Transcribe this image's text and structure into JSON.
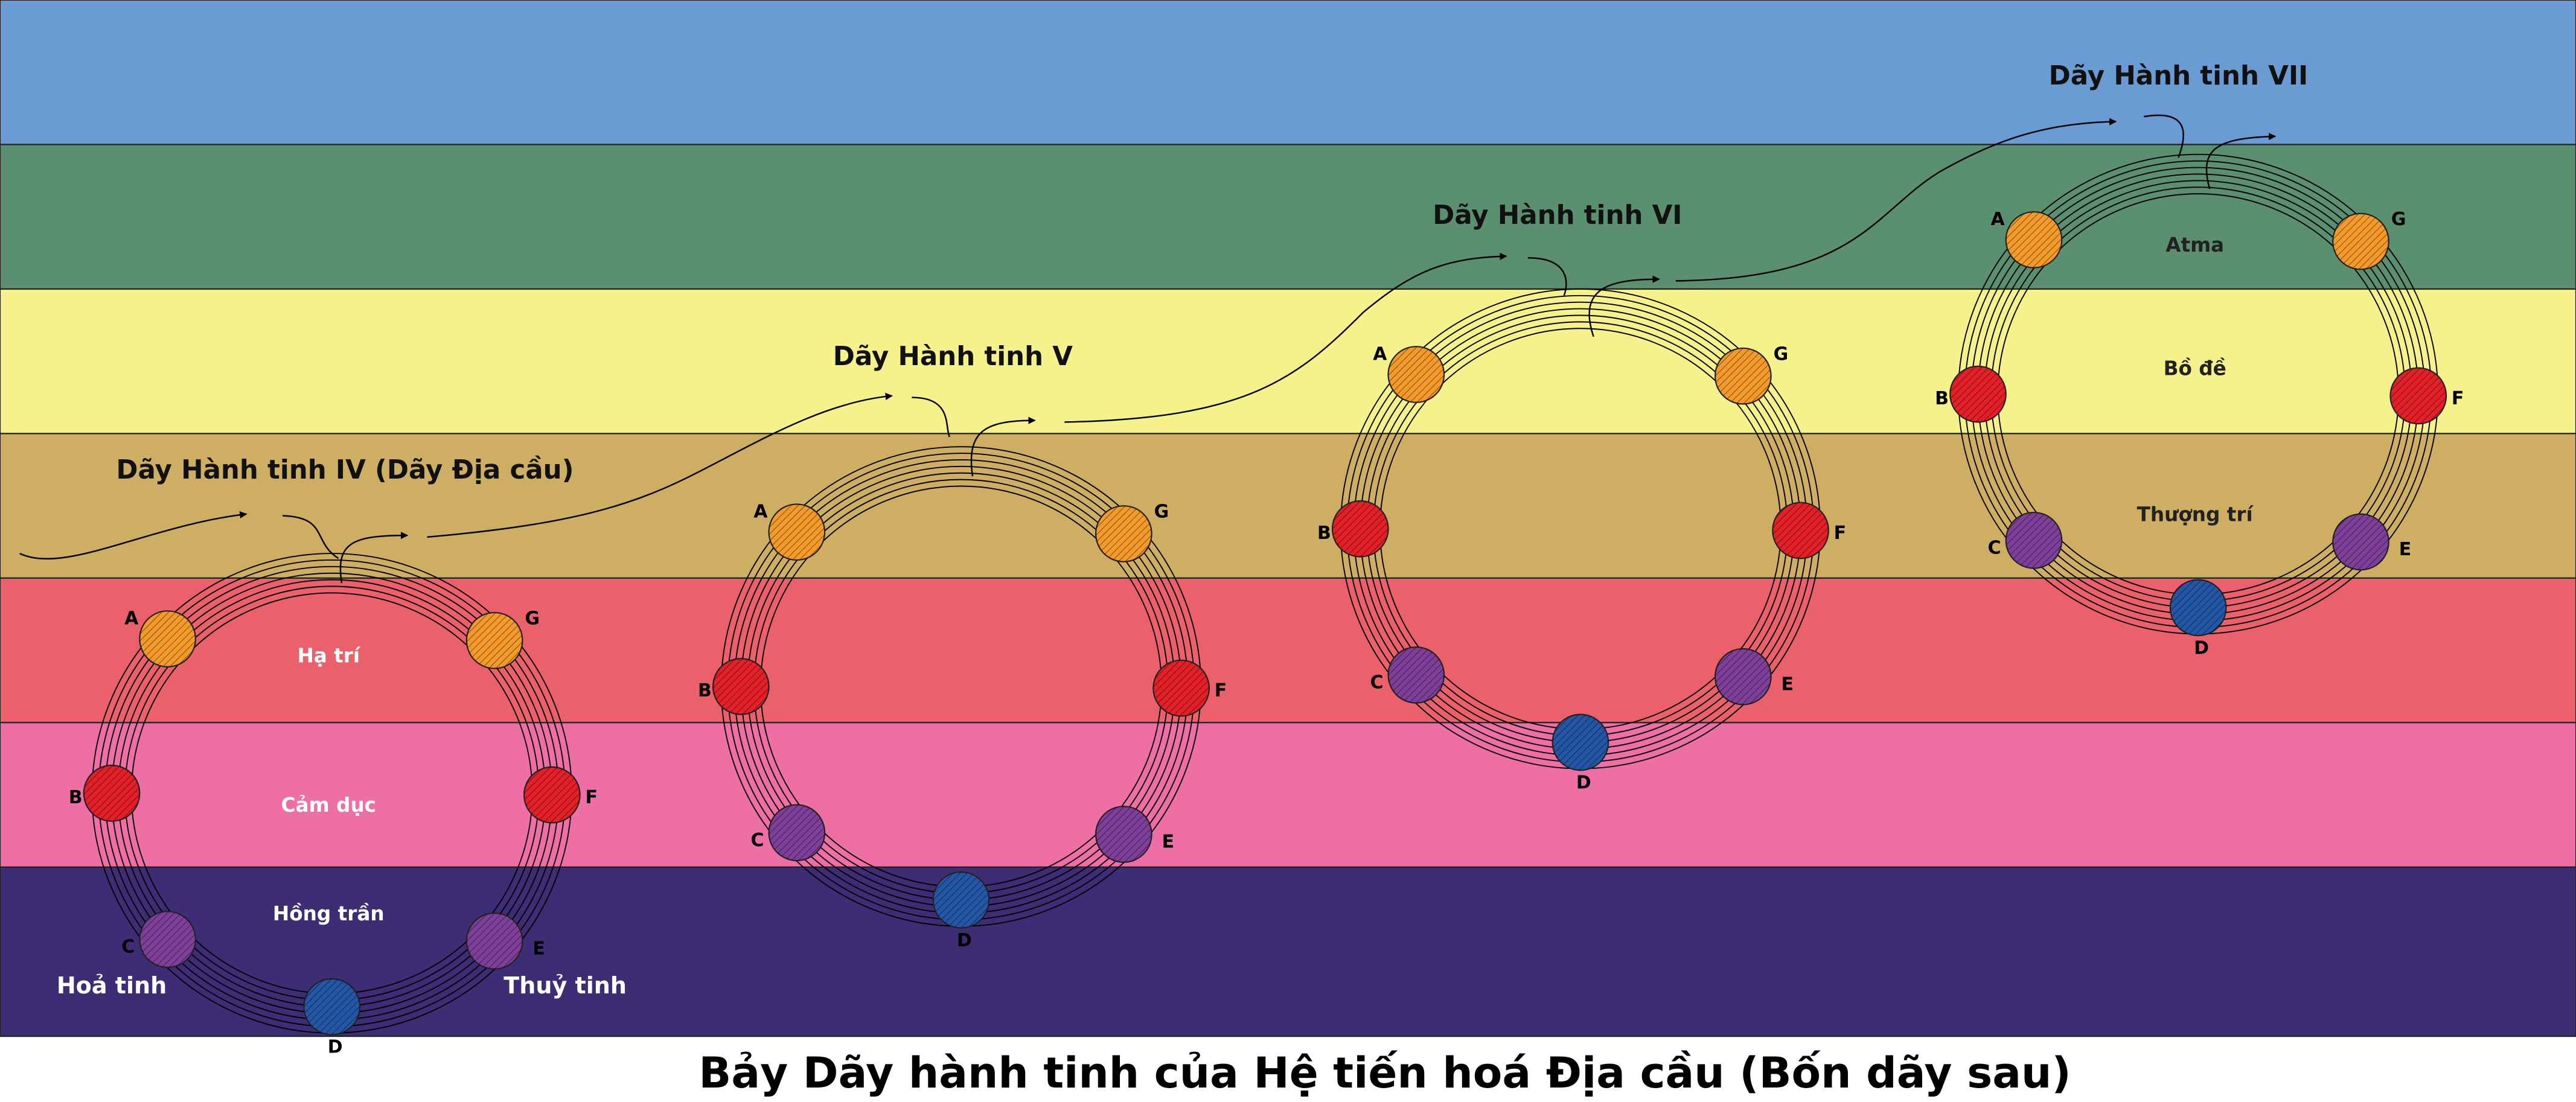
{
  "title": "Bảy Dãy hành tinh của Hệ tiến hoá Địa cầu (Bốn dãy sau)",
  "chains": [
    {
      "title": "Dãy Hành tinh IV (Dãy Địa cầu)",
      "globes": [
        "A",
        "B",
        "C",
        "D",
        "E",
        "F",
        "G"
      ],
      "plane_labels": [
        "Hạ trí",
        "Cảm dục",
        "Hồng trần"
      ],
      "planet_labels": [
        "Hoả tinh",
        "Thuỷ tinh"
      ]
    },
    {
      "title": "Dãy Hành tinh V",
      "globes": [
        "A",
        "B",
        "C",
        "D",
        "E",
        "F",
        "G"
      ]
    },
    {
      "title": "Dãy Hành tinh VI",
      "globes": [
        "A",
        "B",
        "C",
        "D",
        "E",
        "F",
        "G"
      ]
    },
    {
      "title": "Dãy Hành tinh VII",
      "globes": [
        "A",
        "B",
        "C",
        "D",
        "E",
        "F",
        "G"
      ],
      "plane_labels": [
        "Atma",
        "Bồ đề",
        "Thượng trí"
      ]
    }
  ]
}
